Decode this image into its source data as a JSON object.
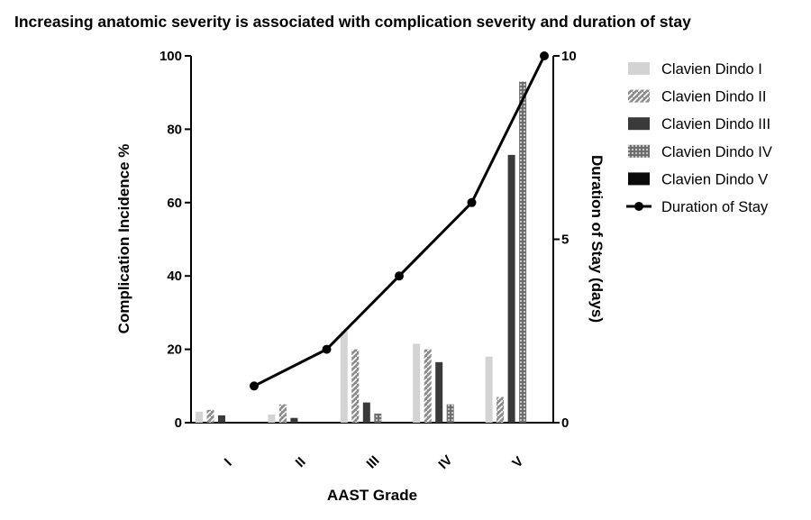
{
  "title": "Increasing anatomic severity is associated with complication severity and duration of stay",
  "chart_data": {
    "type": "bar",
    "title": "Increasing anatomic severity is associated with complication severity and duration of stay",
    "xlabel": "AAST Grade",
    "ylabel": "Complication  Incidence %",
    "y2label": "Duration of  Stay (days)",
    "categories": [
      "I",
      "II",
      "III",
      "IV",
      "V"
    ],
    "ylim": [
      0,
      100
    ],
    "y2lim": [
      0,
      10
    ],
    "yticks": [
      0,
      20,
      40,
      60,
      80,
      100
    ],
    "y2ticks": [
      0,
      5,
      10
    ],
    "grid": false,
    "legend_position": "right",
    "series": [
      {
        "name": "Clavien Dindo I",
        "type": "bar",
        "axis": "left",
        "color": "#d3d3d3",
        "pattern": "solid",
        "values": [
          3,
          2.2,
          25,
          21.5,
          18
        ]
      },
      {
        "name": "Clavien Dindo II",
        "type": "bar",
        "axis": "left",
        "color": "#8c8c8c",
        "pattern": "hatch",
        "values": [
          3.5,
          5,
          20,
          20,
          7
        ]
      },
      {
        "name": "Clavien  Dindo III",
        "type": "bar",
        "axis": "left",
        "color": "#3a3a3a",
        "pattern": "solid",
        "values": [
          2,
          1.3,
          5.5,
          16.5,
          73
        ]
      },
      {
        "name": "Clavien  Dindo  IV",
        "type": "bar",
        "axis": "left",
        "color": "#6e6e6e",
        "pattern": "dots",
        "values": [
          0,
          0,
          2.5,
          5,
          93
        ]
      },
      {
        "name": "Clavien  Dindo V",
        "type": "bar",
        "axis": "left",
        "color": "#0a0a0a",
        "pattern": "solid",
        "values": [
          0,
          0,
          0,
          0,
          0
        ]
      },
      {
        "name": "Duration of Stay",
        "type": "line",
        "axis": "right",
        "color": "#000000",
        "marker": "circle",
        "values": [
          1,
          2,
          4,
          6,
          10
        ]
      }
    ]
  }
}
